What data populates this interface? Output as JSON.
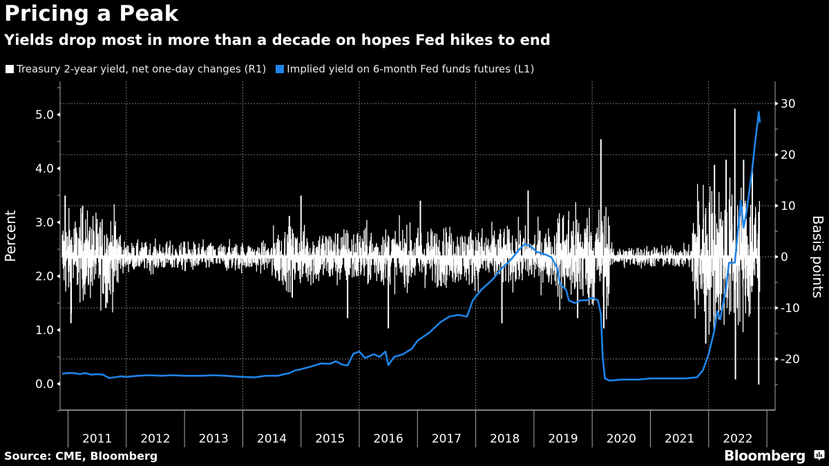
{
  "header": {
    "title": "Pricing a Peak",
    "subtitle": "Yields drop most in more than a decade on hopes Fed hikes to end"
  },
  "legend": [
    {
      "label": "Treasury 2-year yield, net one-day changes (R1)",
      "color": "#ffffff"
    },
    {
      "label": "Implied yield on 6-month Fed funds futures (L1)",
      "color": "#1e84e8"
    }
  ],
  "footer": {
    "source": "Source: CME, Bloomberg",
    "brand": "Bloomberg"
  },
  "chart_data": {
    "type": "bar+line",
    "title": "Pricing a Peak",
    "subtitle": "Yields drop most in more than a decade on hopes Fed hikes to end",
    "xlabel": "",
    "x_range": [
      2010.9,
      2022.88
    ],
    "x_tick_labels": [
      "2011",
      "2012",
      "2013",
      "2014",
      "2015",
      "2016",
      "2017",
      "2018",
      "2019",
      "2020",
      "2021",
      "2022"
    ],
    "grid": true,
    "legend_position": "top-left",
    "left_axis": {
      "label": "Percent",
      "ylim": [
        -0.5,
        5.5
      ],
      "ticks": [
        0.0,
        1.0,
        2.0,
        3.0,
        4.0,
        5.0
      ],
      "tick_labels": [
        "0.0",
        "1.0",
        "2.0",
        "3.0",
        "4.0",
        "5.0"
      ]
    },
    "right_axis": {
      "label": "Basis points",
      "ylim": [
        -30,
        30
      ],
      "ticks": [
        -20,
        -10,
        0,
        10,
        20,
        30
      ],
      "tick_labels": [
        "-20",
        "-10",
        "0",
        "10",
        "20",
        "30"
      ]
    },
    "series": [
      {
        "name": "Treasury 2-year yield, net one-day changes (R1)",
        "type": "bar",
        "axis": "right",
        "color": "#ffffff",
        "note": "Daily net changes in bp; individual bars not legible. Approximate volatility envelope per period plus notable extremes.",
        "volatility_by_period": [
          {
            "start": 2010.9,
            "end": 2011.9,
            "typical_abs_bp": 6
          },
          {
            "start": 2011.9,
            "end": 2014.5,
            "typical_abs_bp": 2
          },
          {
            "start": 2014.5,
            "end": 2018.0,
            "typical_abs_bp": 4
          },
          {
            "start": 2018.0,
            "end": 2019.4,
            "typical_abs_bp": 4
          },
          {
            "start": 2019.4,
            "end": 2020.3,
            "typical_abs_bp": 7
          },
          {
            "start": 2020.3,
            "end": 2021.7,
            "typical_abs_bp": 1.5
          },
          {
            "start": 2021.7,
            "end": 2022.88,
            "typical_abs_bp": 10
          }
        ],
        "extremes": [
          {
            "x": 2010.95,
            "bp": 12
          },
          {
            "x": 2011.05,
            "bp": -13
          },
          {
            "x": 2011.25,
            "bp": 10
          },
          {
            "x": 2011.65,
            "bp": -10
          },
          {
            "x": 2014.8,
            "bp": 8
          },
          {
            "x": 2014.85,
            "bp": -8
          },
          {
            "x": 2015.0,
            "bp": 12
          },
          {
            "x": 2015.8,
            "bp": -12
          },
          {
            "x": 2016.5,
            "bp": -14
          },
          {
            "x": 2017.05,
            "bp": 11
          },
          {
            "x": 2018.9,
            "bp": 13
          },
          {
            "x": 2018.45,
            "bp": -13
          },
          {
            "x": 2019.75,
            "bp": -12
          },
          {
            "x": 2020.15,
            "bp": 23
          },
          {
            "x": 2020.2,
            "bp": -14
          },
          {
            "x": 2021.95,
            "bp": -17
          },
          {
            "x": 2022.1,
            "bp": 18
          },
          {
            "x": 2022.3,
            "bp": 19
          },
          {
            "x": 2022.45,
            "bp": 29
          },
          {
            "x": 2022.46,
            "bp": -24
          },
          {
            "x": 2022.6,
            "bp": 19
          },
          {
            "x": 2022.75,
            "bp": 18
          },
          {
            "x": 2022.86,
            "bp": -25
          }
        ]
      },
      {
        "name": "Implied yield on 6-month Fed funds futures (L1)",
        "type": "line",
        "axis": "left",
        "color": "#1e84e8",
        "points": [
          [
            2010.9,
            0.19
          ],
          [
            2011.0,
            0.2
          ],
          [
            2011.1,
            0.2
          ],
          [
            2011.2,
            0.18
          ],
          [
            2011.3,
            0.2
          ],
          [
            2011.4,
            0.17
          ],
          [
            2011.5,
            0.18
          ],
          [
            2011.6,
            0.17
          ],
          [
            2011.7,
            0.11
          ],
          [
            2011.8,
            0.12
          ],
          [
            2011.9,
            0.14
          ],
          [
            2012.0,
            0.13
          ],
          [
            2012.2,
            0.15
          ],
          [
            2012.4,
            0.16
          ],
          [
            2012.6,
            0.15
          ],
          [
            2012.8,
            0.16
          ],
          [
            2013.0,
            0.15
          ],
          [
            2013.3,
            0.15
          ],
          [
            2013.5,
            0.16
          ],
          [
            2013.7,
            0.15
          ],
          [
            2014.0,
            0.13
          ],
          [
            2014.2,
            0.12
          ],
          [
            2014.4,
            0.15
          ],
          [
            2014.6,
            0.15
          ],
          [
            2014.8,
            0.2
          ],
          [
            2014.9,
            0.25
          ],
          [
            2015.0,
            0.27
          ],
          [
            2015.2,
            0.33
          ],
          [
            2015.35,
            0.38
          ],
          [
            2015.5,
            0.37
          ],
          [
            2015.6,
            0.42
          ],
          [
            2015.7,
            0.36
          ],
          [
            2015.8,
            0.34
          ],
          [
            2015.9,
            0.56
          ],
          [
            2016.0,
            0.6
          ],
          [
            2016.1,
            0.48
          ],
          [
            2016.25,
            0.55
          ],
          [
            2016.35,
            0.5
          ],
          [
            2016.45,
            0.6
          ],
          [
            2016.5,
            0.35
          ],
          [
            2016.6,
            0.5
          ],
          [
            2016.75,
            0.55
          ],
          [
            2016.9,
            0.65
          ],
          [
            2017.0,
            0.8
          ],
          [
            2017.2,
            0.95
          ],
          [
            2017.4,
            1.15
          ],
          [
            2017.55,
            1.25
          ],
          [
            2017.7,
            1.28
          ],
          [
            2017.85,
            1.25
          ],
          [
            2017.95,
            1.55
          ],
          [
            2018.1,
            1.75
          ],
          [
            2018.3,
            1.95
          ],
          [
            2018.45,
            2.15
          ],
          [
            2018.6,
            2.3
          ],
          [
            2018.75,
            2.5
          ],
          [
            2018.85,
            2.6
          ],
          [
            2018.95,
            2.55
          ],
          [
            2019.05,
            2.45
          ],
          [
            2019.2,
            2.4
          ],
          [
            2019.3,
            2.35
          ],
          [
            2019.4,
            2.15
          ],
          [
            2019.45,
            1.85
          ],
          [
            2019.55,
            1.75
          ],
          [
            2019.6,
            1.55
          ],
          [
            2019.7,
            1.5
          ],
          [
            2019.8,
            1.55
          ],
          [
            2019.9,
            1.55
          ],
          [
            2020.0,
            1.6
          ],
          [
            2020.1,
            1.55
          ],
          [
            2020.15,
            1.3
          ],
          [
            2020.18,
            0.5
          ],
          [
            2020.22,
            0.1
          ],
          [
            2020.3,
            0.06
          ],
          [
            2020.5,
            0.08
          ],
          [
            2020.8,
            0.08
          ],
          [
            2021.0,
            0.1
          ],
          [
            2021.3,
            0.1
          ],
          [
            2021.6,
            0.1
          ],
          [
            2021.8,
            0.12
          ],
          [
            2021.9,
            0.25
          ],
          [
            2022.0,
            0.55
          ],
          [
            2022.1,
            1.0
          ],
          [
            2022.15,
            1.35
          ],
          [
            2022.2,
            1.2
          ],
          [
            2022.3,
            1.8
          ],
          [
            2022.35,
            2.25
          ],
          [
            2022.45,
            2.25
          ],
          [
            2022.55,
            3.4
          ],
          [
            2022.6,
            2.9
          ],
          [
            2022.65,
            3.2
          ],
          [
            2022.75,
            4.0
          ],
          [
            2022.8,
            4.5
          ],
          [
            2022.84,
            4.85
          ],
          [
            2022.86,
            5.05
          ],
          [
            2022.88,
            4.85
          ]
        ]
      }
    ]
  }
}
